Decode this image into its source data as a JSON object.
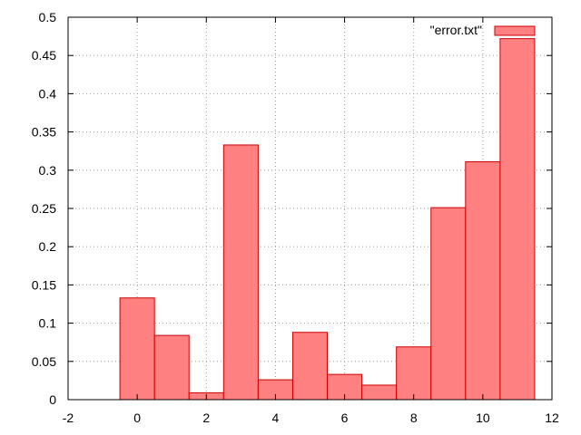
{
  "chart_data": {
    "type": "bar",
    "x": [
      0,
      1,
      2,
      3,
      4,
      5,
      6,
      7,
      8,
      9,
      10,
      11
    ],
    "values": [
      0.133,
      0.084,
      0.009,
      0.333,
      0.026,
      0.088,
      0.033,
      0.019,
      0.069,
      0.251,
      0.311,
      0.472
    ],
    "bar_width": 1,
    "xlim": [
      -2,
      12
    ],
    "ylim": [
      0,
      0.5
    ],
    "xticks": [
      "-2",
      "0",
      "2",
      "4",
      "6",
      "8",
      "10",
      "12"
    ],
    "xtick_values": [
      -2,
      0,
      2,
      4,
      6,
      8,
      10,
      12
    ],
    "yticks": [
      "0",
      "0.05",
      "0.1",
      "0.15",
      "0.2",
      "0.25",
      "0.3",
      "0.35",
      "0.4",
      "0.45",
      "0.5"
    ],
    "ytick_values": [
      0,
      0.05,
      0.1,
      0.15,
      0.2,
      0.25,
      0.3,
      0.35,
      0.4,
      0.45,
      0.5
    ],
    "grid": true,
    "legend": {
      "label": "\"error.txt\"",
      "position": "top-right"
    },
    "colors": {
      "bar_fill": "#ff8080",
      "bar_stroke": "#cc0000",
      "grid": "#a0a0a0",
      "axis": "#000000"
    },
    "title": "",
    "xlabel": "",
    "ylabel": ""
  }
}
